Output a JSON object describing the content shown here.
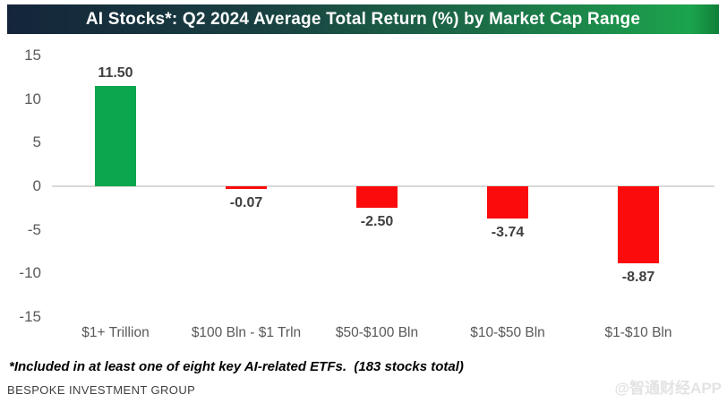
{
  "title": "AI Stocks*: Q2 2024 Average Total Return (%) by Market Cap Range",
  "footnote": "*Included in at least one of eight key AI-related ETFs.  (183 stocks total)",
  "source": "BESPOKE INVESTMENT GROUP",
  "watermark": "@智通财经APP",
  "colors": {
    "title_gradient_left": "#14253A",
    "title_gradient_right": "#1CA44D",
    "positive_bar": "#0CA64E",
    "negative_bar": "#FB0B0B",
    "axis_line": "#D9D9D9",
    "tick_label": "#595959",
    "data_label": "#404040"
  },
  "chart_data": {
    "type": "bar",
    "title": "AI Stocks*: Q2 2024 Average Total Return (%) by Market Cap Range",
    "categories": [
      "$1+ Trillion",
      "$100 Bln - $1 Trln",
      "$50-$100 Bln",
      "$10-$50 Bln",
      "$1-$10 Bln"
    ],
    "values": [
      11.5,
      -0.07,
      -2.5,
      -3.74,
      -8.87
    ],
    "value_labels": [
      "11.50",
      "-0.07",
      "-2.50",
      "-3.74",
      "-8.87"
    ],
    "xlabel": "",
    "ylabel": "",
    "ylim": [
      -15,
      15
    ],
    "yticks": [
      15,
      10,
      5,
      0,
      -5,
      -10,
      -15
    ],
    "grid": false,
    "legend": false
  }
}
